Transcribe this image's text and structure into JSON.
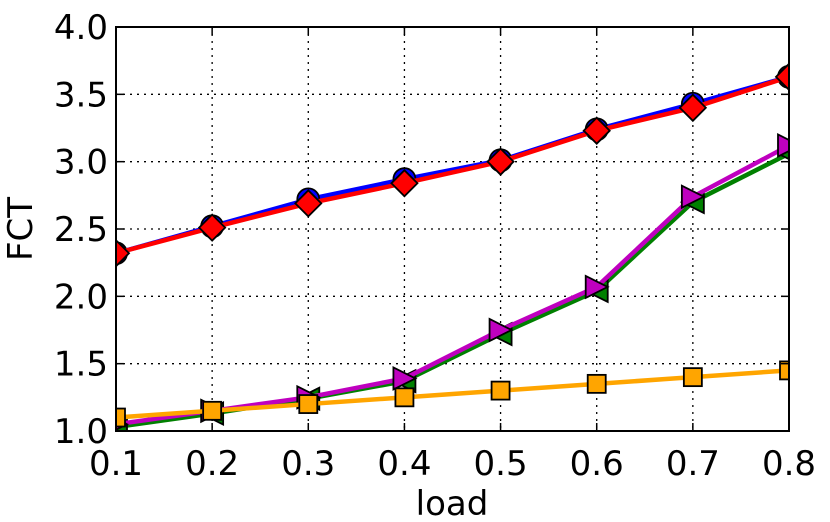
{
  "chart_data": {
    "type": "line",
    "title": "",
    "xlabel": "load",
    "ylabel": "FCT",
    "xlim": [
      0.1,
      0.8
    ],
    "ylim": [
      1.0,
      4.0
    ],
    "xticks": [
      "0.1",
      "0.2",
      "0.3",
      "0.4",
      "0.5",
      "0.6",
      "0.7",
      "0.8"
    ],
    "yticks": [
      "1.0",
      "1.5",
      "2.0",
      "2.5",
      "3.0",
      "3.5",
      "4.0"
    ],
    "grid": true,
    "x": [
      0.1,
      0.2,
      0.3,
      0.4,
      0.5,
      0.6,
      0.7,
      0.8
    ],
    "series": [
      {
        "color": "#0000ff",
        "marker": "circle",
        "values": [
          2.32,
          2.52,
          2.72,
          2.87,
          3.01,
          3.24,
          3.43,
          3.63
        ]
      },
      {
        "color": "#ff0000",
        "marker": "diamond",
        "values": [
          2.32,
          2.51,
          2.69,
          2.84,
          3.0,
          3.23,
          3.4,
          3.63
        ]
      },
      {
        "color": "#008000",
        "marker": "triangle-left",
        "values": [
          1.03,
          1.13,
          1.24,
          1.37,
          1.72,
          2.04,
          2.7,
          3.06
        ]
      },
      {
        "color": "#bf00bf",
        "marker": "triangle-right",
        "values": [
          1.05,
          1.15,
          1.25,
          1.39,
          1.75,
          2.07,
          2.74,
          3.12
        ]
      },
      {
        "color": "#ffa500",
        "marker": "square",
        "values": [
          1.1,
          1.15,
          1.2,
          1.25,
          1.3,
          1.35,
          1.4,
          1.45
        ]
      }
    ]
  }
}
